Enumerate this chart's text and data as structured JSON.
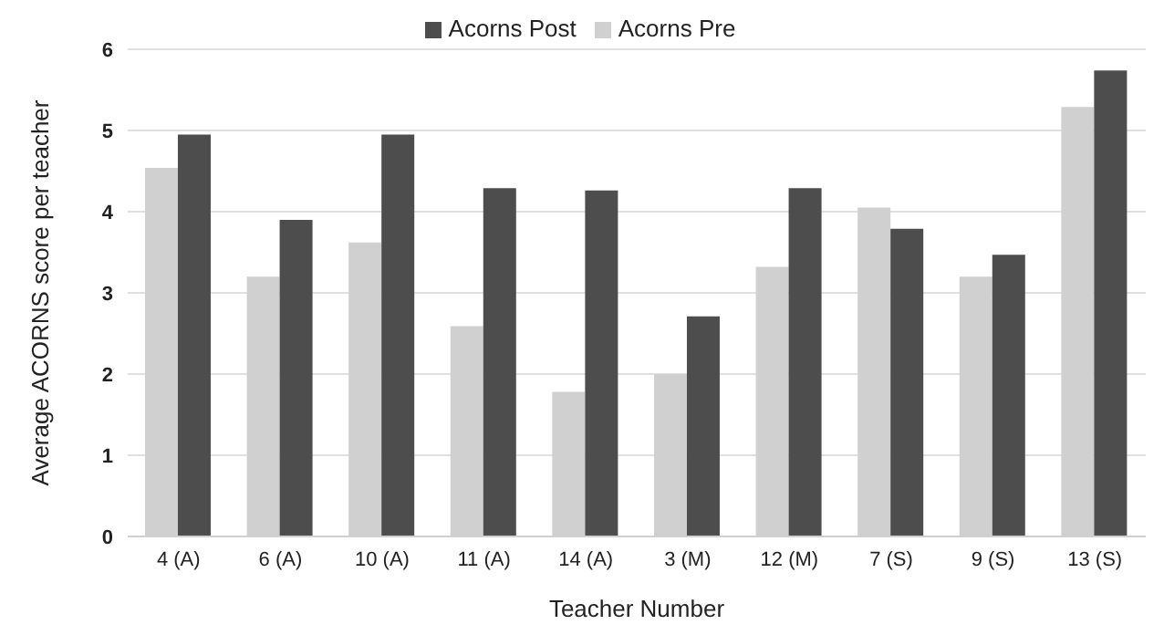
{
  "chart_data": {
    "type": "bar",
    "xlabel": "Teacher Number",
    "ylabel": "Average ACORNS score per teacher",
    "categories": [
      "4 (A)",
      "6 (A)",
      "10 (A)",
      "11 (A)",
      "14 (A)",
      "3 (M)",
      "12 (M)",
      "7 (S)",
      "9 (S)",
      "13 (S)"
    ],
    "series": [
      {
        "name": "Acorns Pre",
        "color": "#d0d0d0",
        "values": [
          4.54,
          3.2,
          3.62,
          2.59,
          1.78,
          2.0,
          3.32,
          4.05,
          3.2,
          5.29
        ]
      },
      {
        "name": "Acorns Post",
        "color": "#4d4d4d",
        "values": [
          4.95,
          3.9,
          4.95,
          4.29,
          4.26,
          2.71,
          4.29,
          3.79,
          3.47,
          5.74
        ]
      }
    ],
    "ylim": [
      0,
      6
    ],
    "yticks": [
      0,
      1,
      2,
      3,
      4,
      5,
      6
    ],
    "grid": "y",
    "legend": "top"
  }
}
